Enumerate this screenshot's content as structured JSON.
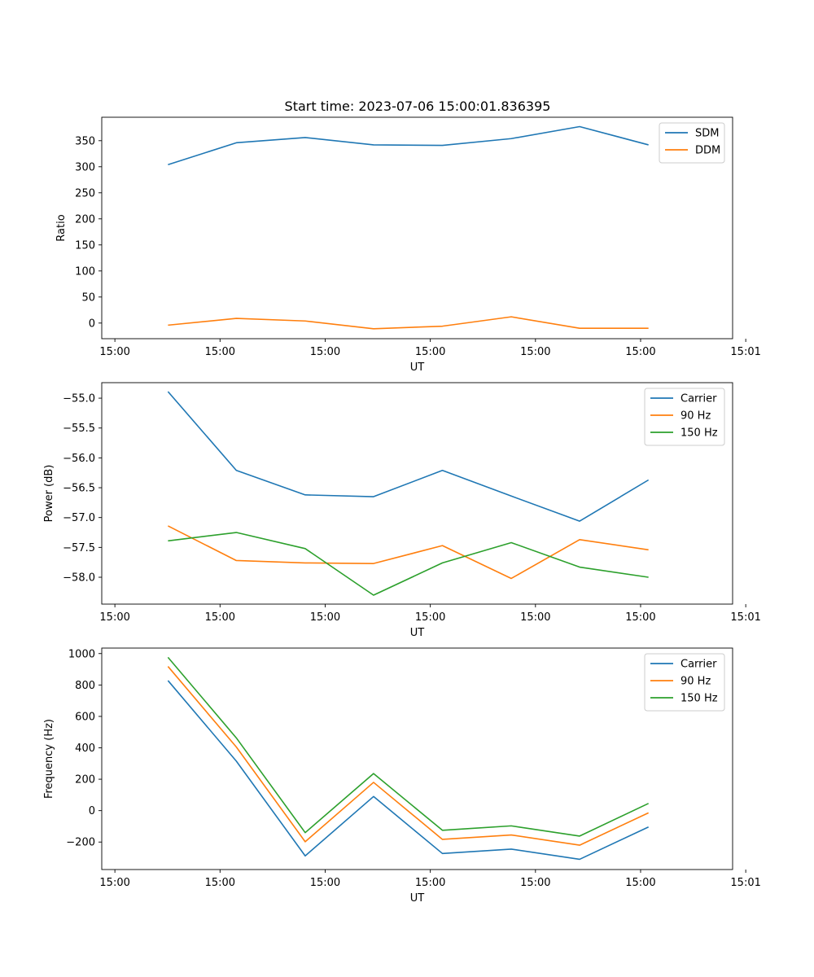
{
  "title": "Start time: 2023-07-06 15:00:01.836395",
  "series_colors": {
    "blue": "#1f77b4",
    "orange": "#ff7f0e",
    "green": "#2ca02c"
  },
  "chart_data": [
    {
      "type": "line",
      "xlabel": "UT",
      "ylabel": "Ratio",
      "xlim": [
        0,
        12
      ],
      "ylim": [
        -30,
        395
      ],
      "xticks": [
        0.25,
        2.25,
        4.25,
        6.25,
        8.25,
        10.25,
        12.25
      ],
      "xtick_labels": [
        "15:00",
        "15:00",
        "15:00",
        "15:00",
        "15:00",
        "15:00",
        "15:01"
      ],
      "yticks": [
        0,
        50,
        100,
        150,
        200,
        250,
        300,
        350
      ],
      "ytick_labels": [
        "0",
        "50",
        "100",
        "150",
        "200",
        "250",
        "300",
        "350"
      ],
      "x": [
        1.26,
        2.56,
        3.87,
        5.17,
        6.48,
        7.79,
        9.09,
        10.4
      ],
      "legend": "top-right",
      "series": [
        {
          "name": "SDM",
          "color": "#1f77b4",
          "values": [
            304,
            346,
            356,
            342,
            341,
            354,
            377,
            342
          ]
        },
        {
          "name": "DDM",
          "color": "#ff7f0e",
          "values": [
            -4,
            9,
            4,
            -11,
            -6,
            12,
            -10,
            -10
          ]
        }
      ]
    },
    {
      "type": "line",
      "xlabel": "UT",
      "ylabel": "Power (dB)",
      "xlim": [
        0,
        12
      ],
      "ylim": [
        -58.45,
        -54.74
      ],
      "xticks": [
        0.25,
        2.25,
        4.25,
        6.25,
        8.25,
        10.25,
        12.25
      ],
      "xtick_labels": [
        "15:00",
        "15:00",
        "15:00",
        "15:00",
        "15:00",
        "15:00",
        "15:01"
      ],
      "yticks": [
        -58.0,
        -57.5,
        -57.0,
        -56.5,
        -56.0,
        -55.5,
        -55.0
      ],
      "ytick_labels": [
        "−58.0",
        "−57.5",
        "−57.0",
        "−56.5",
        "−56.0",
        "−55.5",
        "−55.0"
      ],
      "x": [
        1.26,
        2.56,
        3.87,
        5.17,
        6.48,
        7.79,
        9.09,
        10.4
      ],
      "legend": "top-right",
      "series": [
        {
          "name": "Carrier",
          "color": "#1f77b4",
          "values": [
            -54.89,
            -56.21,
            -56.62,
            -56.65,
            -56.21,
            -56.64,
            -57.06,
            -56.37
          ]
        },
        {
          "name": "90 Hz",
          "color": "#ff7f0e",
          "values": [
            -57.14,
            -57.72,
            -57.76,
            -57.77,
            -57.47,
            -58.02,
            -57.37,
            -57.54
          ]
        },
        {
          "name": "150 Hz",
          "color": "#2ca02c",
          "values": [
            -57.39,
            -57.25,
            -57.52,
            -58.3,
            -57.76,
            -57.42,
            -57.83,
            -58.0
          ]
        }
      ]
    },
    {
      "type": "line",
      "xlabel": "UT",
      "ylabel": "Frequency (Hz)",
      "xlim": [
        0,
        12
      ],
      "ylim": [
        -375,
        1035
      ],
      "xticks": [
        0.25,
        2.25,
        4.25,
        6.25,
        8.25,
        10.25,
        12.25
      ],
      "xtick_labels": [
        "15:00",
        "15:00",
        "15:00",
        "15:00",
        "15:00",
        "15:00",
        "15:01"
      ],
      "yticks": [
        -200,
        0,
        200,
        400,
        600,
        800,
        1000
      ],
      "ytick_labels": [
        "−200",
        "0",
        "200",
        "400",
        "600",
        "800",
        "1000"
      ],
      "x": [
        1.26,
        2.56,
        3.87,
        5.17,
        6.48,
        7.79,
        9.09,
        10.4
      ],
      "legend": "top-right",
      "series": [
        {
          "name": "Carrier",
          "color": "#1f77b4",
          "values": [
            828,
            315,
            -288,
            90,
            -273,
            -245,
            -310,
            -104
          ]
        },
        {
          "name": "90 Hz",
          "color": "#ff7f0e",
          "values": [
            918,
            405,
            -198,
            180,
            -183,
            -155,
            -220,
            -14
          ]
        },
        {
          "name": "150 Hz",
          "color": "#2ca02c",
          "values": [
            976,
            463,
            -140,
            236,
            -125,
            -97,
            -162,
            46
          ]
        }
      ]
    }
  ]
}
